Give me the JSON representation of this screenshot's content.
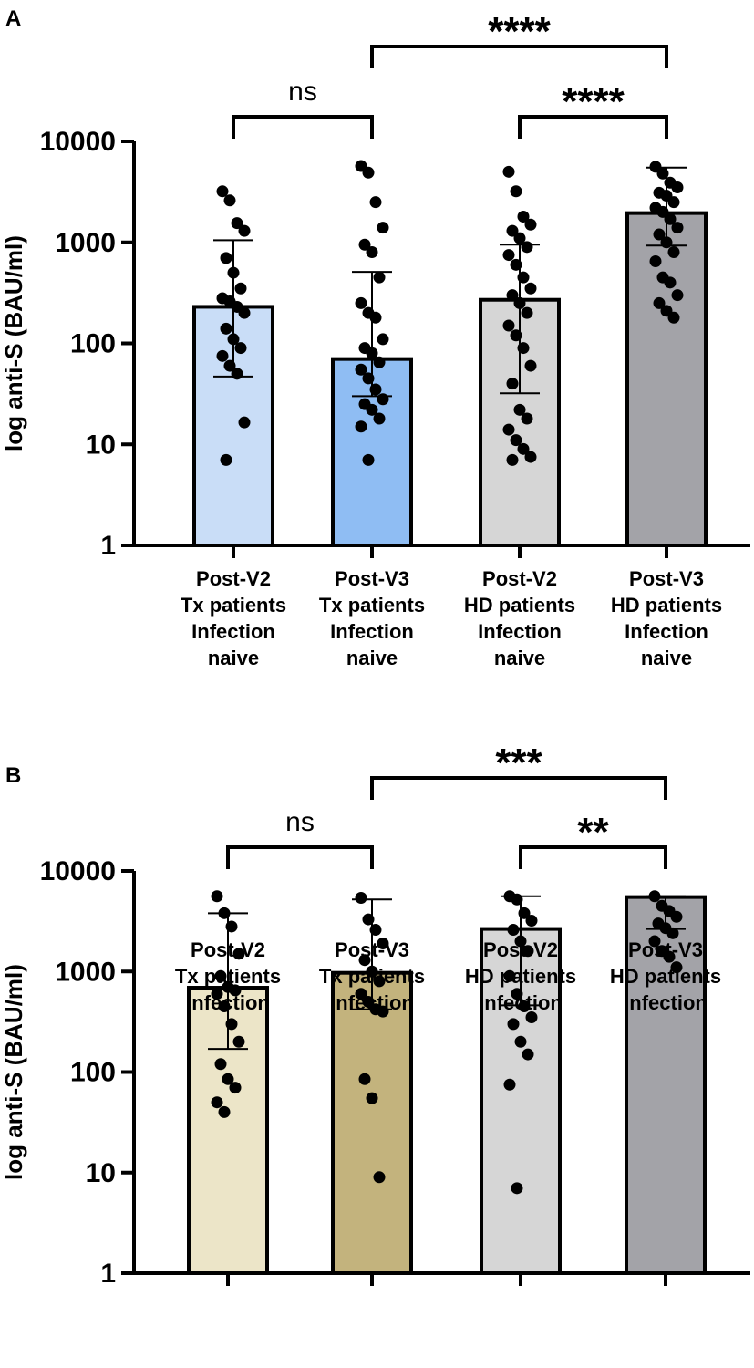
{
  "chart_data": [
    {
      "panel": "A",
      "type": "bar",
      "yscale": "log",
      "ylim": [
        1,
        10000
      ],
      "ylabel": "log anti-S (BAU/ml)",
      "yticks": [
        "1",
        "10",
        "100",
        "1000",
        "10000"
      ],
      "categories": [
        [
          "Post-V2",
          "Tx patients",
          "Infection",
          "naive"
        ],
        [
          "Post-V3",
          "Tx patients",
          "Infection",
          "naive"
        ],
        [
          "Post-V2",
          "HD patients",
          "Infection",
          "naive"
        ],
        [
          "Post-V3",
          "HD patients",
          "Infection",
          "naive"
        ]
      ],
      "colors": [
        "#c9ddf7",
        "#8fbdf3",
        "#d6d6d6",
        "#a3a3a8"
      ],
      "values": [
        230,
        70,
        270,
        1950
      ],
      "error_low": [
        47,
        30,
        32,
        930
      ],
      "error_high": [
        1050,
        510,
        950,
        5500
      ],
      "points": [
        [
          3200,
          2600,
          1550,
          1300,
          700,
          500,
          350,
          280,
          260,
          230,
          200,
          140,
          110,
          90,
          75,
          60,
          50,
          16.5,
          7
        ],
        [
          5700,
          4900,
          2500,
          1400,
          950,
          800,
          450,
          250,
          200,
          180,
          110,
          90,
          80,
          65,
          55,
          45,
          35,
          28,
          25,
          22,
          18,
          15,
          7
        ],
        [
          5000,
          3200,
          1800,
          1500,
          1300,
          1100,
          900,
          750,
          600,
          450,
          350,
          300,
          250,
          200,
          150,
          120,
          90,
          60,
          40,
          22,
          18,
          14,
          11,
          9,
          7.5,
          7
        ],
        [
          5600,
          4800,
          3900,
          3500,
          3100,
          2900,
          2500,
          2200,
          2000,
          1700,
          1400,
          1200,
          1000,
          800,
          650,
          450,
          400,
          300,
          250,
          210,
          180
        ]
      ],
      "comparisons": [
        {
          "from": 0,
          "to": 1,
          "label": "ns",
          "level": 1
        },
        {
          "from": 2,
          "to": 3,
          "label": "****",
          "level": 1
        },
        {
          "from": 1,
          "to": 3,
          "label": "****",
          "level": 2
        }
      ]
    },
    {
      "panel": "B",
      "type": "bar",
      "yscale": "log",
      "ylim": [
        1,
        10000
      ],
      "ylabel": "log anti-S (BAU/ml)",
      "yticks": [
        "1",
        "10",
        "100",
        "1000",
        "10000"
      ],
      "categories": [
        [
          "Post-V2",
          "Tx patients",
          "Infection"
        ],
        [
          "Post-V3",
          "Tx patients",
          "Infection"
        ],
        [
          "Post-V2",
          "HD patients",
          "Infection"
        ],
        [
          "Post-V3",
          "HD patients",
          "Infection"
        ]
      ],
      "colors": [
        "#ece5c8",
        "#c3b37d",
        "#d6d6d6",
        "#a3a3a8"
      ],
      "values": [
        690,
        970,
        2650,
        5500
      ],
      "error_low": [
        170,
        420,
        460,
        2650
      ],
      "error_high": [
        3800,
        5200,
        5600,
        5600
      ],
      "points": [
        [
          5600,
          3800,
          2800,
          1500,
          900,
          700,
          650,
          600,
          450,
          300,
          200,
          120,
          85,
          70,
          50,
          40
        ],
        [
          5400,
          3300,
          2600,
          1900,
          1300,
          1000,
          800,
          600,
          500,
          420,
          400,
          85,
          55,
          9
        ],
        [
          5600,
          5200,
          3800,
          3200,
          2600,
          2000,
          1600,
          900,
          600,
          450,
          350,
          300,
          200,
          150,
          75,
          7
        ],
        [
          5600,
          4500,
          4000,
          3500,
          3000,
          2700,
          2400,
          2000,
          1600,
          1400,
          1100
        ]
      ],
      "comparisons": [
        {
          "from": 0,
          "to": 1,
          "label": "ns",
          "level": 1
        },
        {
          "from": 2,
          "to": 3,
          "label": "**",
          "level": 1
        },
        {
          "from": 1,
          "to": 3,
          "label": "***",
          "level": 2
        }
      ]
    }
  ]
}
